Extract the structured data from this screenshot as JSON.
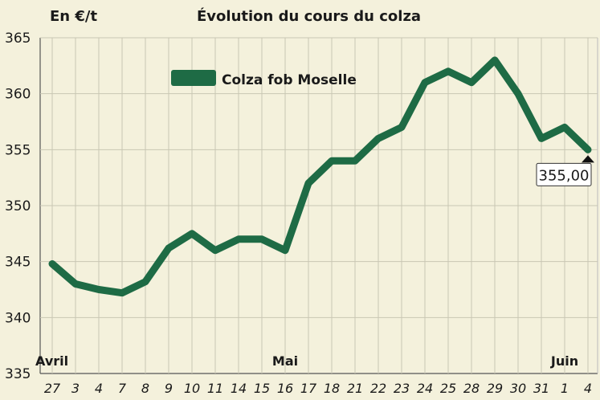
{
  "chart_data": {
    "type": "line",
    "title": "Évolution du cours du colza",
    "ylabel": "En €/t",
    "xlabel": "",
    "ylim": [
      335,
      365
    ],
    "yticks": [
      335,
      340,
      345,
      350,
      355,
      360,
      365
    ],
    "grid": true,
    "legend_position": "top-left",
    "categories": [
      "27",
      "3",
      "4",
      "7",
      "8",
      "9",
      "10",
      "11",
      "14",
      "15",
      "16",
      "17",
      "18",
      "21",
      "22",
      "23",
      "24",
      "25",
      "28",
      "29",
      "30",
      "31",
      "1",
      "4"
    ],
    "months": [
      {
        "label": "Avril",
        "at_index": 0
      },
      {
        "label": "Mai",
        "at_index": 10
      },
      {
        "label": "Juin",
        "at_index": 22
      }
    ],
    "series": [
      {
        "name": "Colza fob Moselle",
        "color": "#1e6b45",
        "values": [
          344.8,
          343.0,
          342.5,
          342.2,
          343.2,
          346.2,
          347.5,
          346.0,
          347.0,
          347.0,
          346.0,
          352.0,
          354.0,
          354.0,
          356.0,
          357.0,
          361.0,
          362.0,
          361.0,
          363.0,
          360.0,
          356.0,
          357.0,
          355.0
        ]
      }
    ],
    "last_value_label": "355,00"
  }
}
